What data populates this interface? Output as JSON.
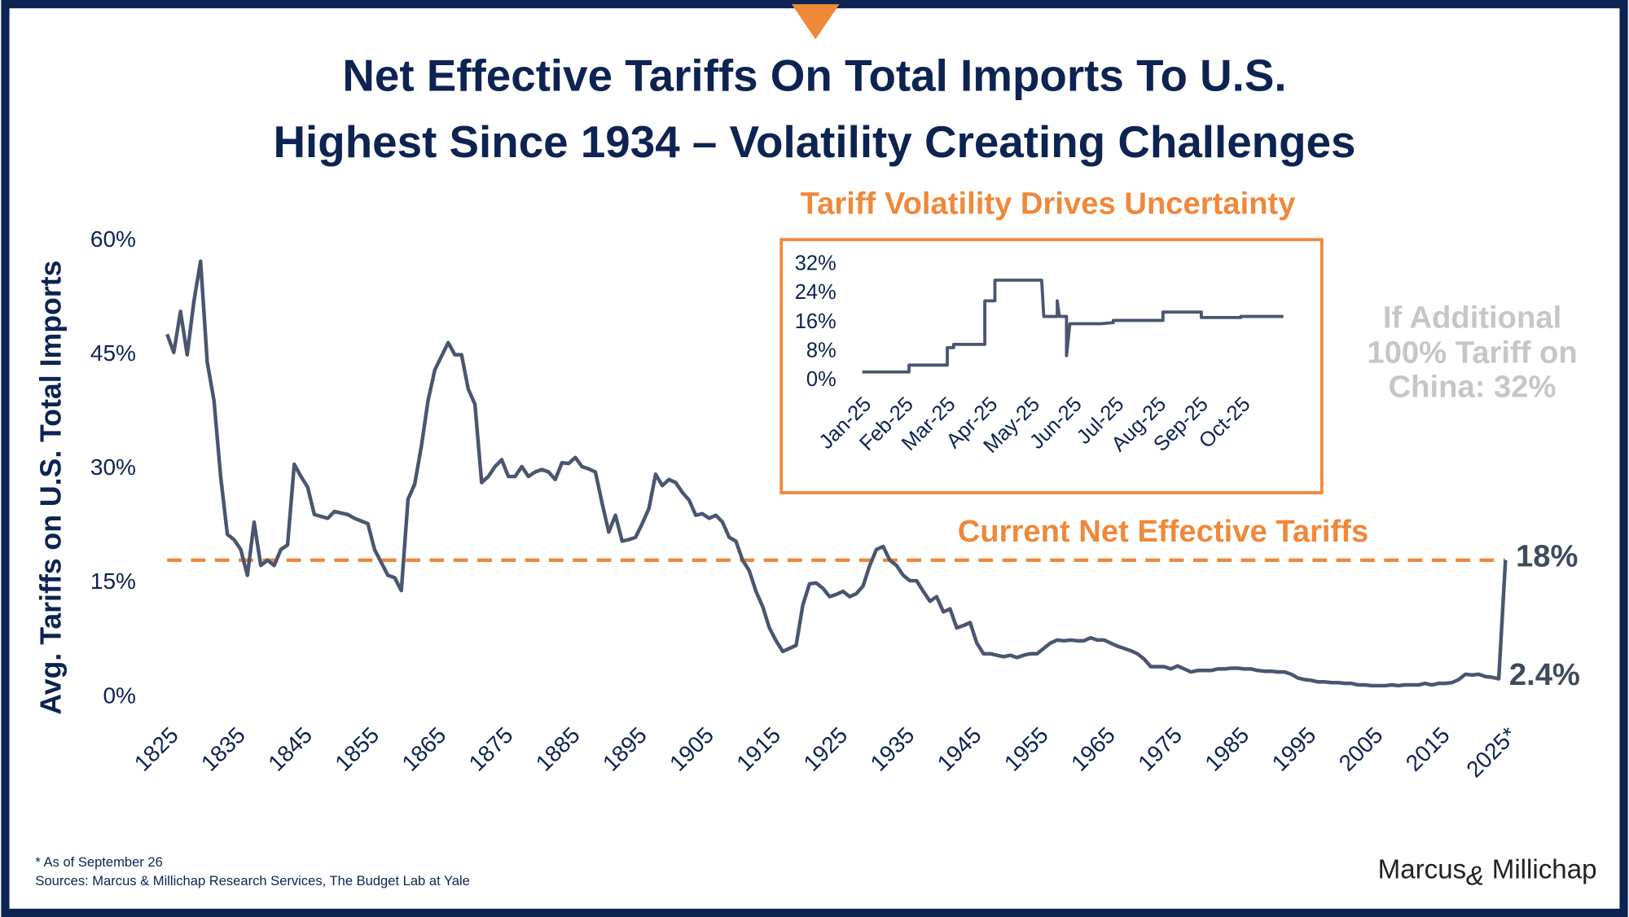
{
  "header": {
    "title_lines": [
      "Net Effective Tariffs On Total Imports To U.S.",
      "Highest Since 1934 – Volatility Creating Challenges"
    ]
  },
  "chart_data": [
    {
      "type": "line",
      "y_label": "Avg. Tariffs on U.S. Total Imports",
      "color": "#4a5670",
      "x": [
        1825,
        1826,
        1827,
        1828,
        1829,
        1830,
        1831,
        1832,
        1833,
        1834,
        1835,
        1836,
        1837,
        1838,
        1839,
        1840,
        1841,
        1842,
        1843,
        1844,
        1845,
        1846,
        1847,
        1849,
        1850,
        1852,
        1853,
        1855,
        1856,
        1858,
        1859,
        1860,
        1861,
        1862,
        1863,
        1864,
        1865,
        1867,
        1868,
        1869,
        1870,
        1871,
        1872,
        1873,
        1874,
        1875,
        1876,
        1877,
        1878,
        1879,
        1880,
        1881,
        1882,
        1883,
        1884,
        1885,
        1886,
        1887,
        1888,
        1889,
        1890,
        1891,
        1892,
        1893,
        1894,
        1895,
        1896,
        1897,
        1898,
        1899,
        1900,
        1901,
        1902,
        1903,
        1904,
        1905,
        1906,
        1907,
        1908,
        1909,
        1910,
        1911,
        1912,
        1913,
        1914,
        1915,
        1916,
        1917,
        1918,
        1919,
        1920,
        1921,
        1922,
        1923,
        1924,
        1925,
        1926,
        1927,
        1928,
        1929,
        1930,
        1931,
        1932,
        1933,
        1934,
        1935,
        1936,
        1937,
        1938,
        1939,
        1940,
        1941,
        1942,
        1943,
        1944,
        1945,
        1946,
        1947,
        1948,
        1949,
        1950,
        1951,
        1952,
        1953,
        1954,
        1955,
        1956,
        1957,
        1958,
        1959,
        1960,
        1961,
        1962,
        1963,
        1964,
        1965,
        1966,
        1967,
        1968,
        1969,
        1970,
        1971,
        1972,
        1973,
        1974,
        1975,
        1976,
        1977,
        1978,
        1979,
        1980,
        1981,
        1982,
        1983,
        1984,
        1985,
        1986,
        1987,
        1988,
        1989,
        1990,
        1991,
        1992,
        1993,
        1994,
        1995,
        1996,
        1997,
        1998,
        1999,
        2000,
        2001,
        2002,
        2003,
        2004,
        2005,
        2006,
        2007,
        2008,
        2009,
        2010,
        2011,
        2012,
        2013,
        2014,
        2015,
        2016,
        2017,
        2018,
        2019,
        2020,
        2021,
        2022,
        2023,
        2024,
        2025
      ],
      "values": [
        47.7,
        45.3,
        50.7,
        45,
        52,
        57.3,
        44,
        39,
        29,
        21.4,
        20.7,
        19.4,
        16,
        23,
        17.3,
        18,
        17.3,
        19.4,
        20,
        30.6,
        29,
        27.6,
        24,
        23.5,
        24.4,
        24,
        23.5,
        22.8,
        19.4,
        16,
        15.7,
        14,
        26,
        28,
        33,
        39,
        43,
        46.6,
        45,
        45,
        40.5,
        38.5,
        28.2,
        29,
        30.3,
        31.2,
        29,
        29,
        30.3,
        29,
        29.6,
        29.9,
        29.6,
        28.6,
        30.8,
        30.7,
        31.5,
        30.3,
        30,
        29.6,
        25.5,
        21.7,
        23.9,
        20.5,
        20.7,
        21,
        22.8,
        24.8,
        29.3,
        27.8,
        28.6,
        28.2,
        26.9,
        25.9,
        23.9,
        24.1,
        23.5,
        23.9,
        23,
        21,
        20.5,
        18,
        16.6,
        13.9,
        11.9,
        9.1,
        7.4,
        6,
        6.4,
        6.8,
        12.1,
        14.9,
        15,
        14.3,
        13.2,
        13.5,
        13.9,
        13.2,
        13.6,
        14.6,
        17.3,
        19.4,
        19.8,
        18,
        17.3,
        16,
        15.3,
        15.3,
        13.9,
        12.6,
        13.2,
        11.2,
        11.6,
        9.1,
        9.4,
        9.8,
        7.1,
        5.7,
        5.7,
        5.5,
        5.3,
        5.5,
        5.2,
        5.5,
        5.7,
        5.7,
        6.4,
        7.1,
        7.5,
        7.4,
        7.5,
        7.4,
        7.4,
        7.8,
        7.5,
        7.5,
        7.1,
        6.7,
        6.4,
        6.1,
        5.7,
        5,
        4,
        4,
        4,
        3.7,
        4.1,
        3.7,
        3.3,
        3.5,
        3.5,
        3.5,
        3.7,
        3.7,
        3.8,
        3.8,
        3.7,
        3.7,
        3.5,
        3.4,
        3.4,
        3.3,
        3.3,
        3,
        2.5,
        2.3,
        2.2,
        2,
        2,
        1.9,
        1.9,
        1.8,
        1.8,
        1.6,
        1.6,
        1.5,
        1.5,
        1.5,
        1.6,
        1.5,
        1.6,
        1.6,
        1.6,
        1.8,
        1.6,
        1.8,
        1.8,
        1.9,
        2.3,
        3,
        2.9,
        3,
        2.7,
        2.6,
        2.4,
        18
      ],
      "xlim": [
        1825,
        2025
      ],
      "ylim": [
        0,
        60
      ],
      "xticks": [
        1825,
        1835,
        1845,
        1855,
        1865,
        1875,
        1885,
        1895,
        1905,
        1915,
        1925,
        1935,
        1945,
        1955,
        1965,
        1975,
        1985,
        1995,
        2005,
        2015,
        {
          "value": 2025,
          "label": "2025*"
        }
      ],
      "yticks": [
        {
          "value": 0,
          "label": "0%"
        },
        {
          "value": 15,
          "label": "15%"
        },
        {
          "value": 30,
          "label": "30%"
        },
        {
          "value": 45,
          "label": "45%"
        },
        {
          "value": 60,
          "label": "60%"
        }
      ],
      "grid": false,
      "reference_line": {
        "value": 18,
        "label": "Current Net Effective Tariffs",
        "color": "#f0883a"
      },
      "annotations": [
        {
          "x": 2025,
          "y": 18,
          "label": "18%"
        },
        {
          "x": 2024,
          "y": 2.4,
          "label": "2.4%"
        }
      ]
    },
    {
      "type": "line",
      "title": "Tariff Volatility Drives Uncertainty",
      "title_color": "#f0883a",
      "color": "#4a5670",
      "x": [
        0,
        1.11,
        1.11,
        2.02,
        2.02,
        2.17,
        2.17,
        2.91,
        2.91,
        3.15,
        3.15,
        4.26,
        4.31,
        4.63,
        4.63,
        4.68,
        4.85,
        4.85,
        4.93,
        5.67,
        5.96,
        5.96,
        7.14,
        7.14,
        8.05,
        8.05,
        8.99,
        8.99,
        10
      ],
      "values": [
        2.4,
        2.4,
        4.3,
        4.3,
        9.1,
        9.1,
        10,
        10,
        22,
        22,
        27.7,
        27.7,
        17.7,
        17.7,
        22,
        17.7,
        17.7,
        6.9,
        15.7,
        15.7,
        16,
        16.6,
        16.6,
        18.9,
        18.9,
        17.4,
        17.4,
        17.7,
        17.7
      ],
      "xlim": [
        0,
        10
      ],
      "ylim": [
        0,
        32
      ],
      "xticks": [
        {
          "value": 0,
          "label": "Jan-25"
        },
        {
          "value": 1,
          "label": "Feb-25"
        },
        {
          "value": 2,
          "label": "Mar-25"
        },
        {
          "value": 3,
          "label": "Apr-25"
        },
        {
          "value": 4,
          "label": "May-25"
        },
        {
          "value": 5,
          "label": "Jun-25"
        },
        {
          "value": 6,
          "label": "Jul-25"
        },
        {
          "value": 7,
          "label": "Aug-25"
        },
        {
          "value": 8,
          "label": "Sep-25"
        },
        {
          "value": 9,
          "label": "Oct-25"
        }
      ],
      "yticks": [
        {
          "value": 0,
          "label": "0%"
        },
        {
          "value": 8,
          "label": "8%"
        },
        {
          "value": 16,
          "label": "16%"
        },
        {
          "value": 24,
          "label": "24%"
        },
        {
          "value": 32,
          "label": "32%"
        }
      ],
      "grid": false
    }
  ],
  "side_note": {
    "lines": [
      "If Additional",
      "100% Tariff on",
      "China: 32%"
    ]
  },
  "footnotes": [
    "* As of September 26",
    "Sources: Marcus & Millichap Research Services, The Budget Lab at Yale"
  ],
  "logo": {
    "parts": [
      "Marcus",
      "&",
      "Millichap"
    ]
  }
}
